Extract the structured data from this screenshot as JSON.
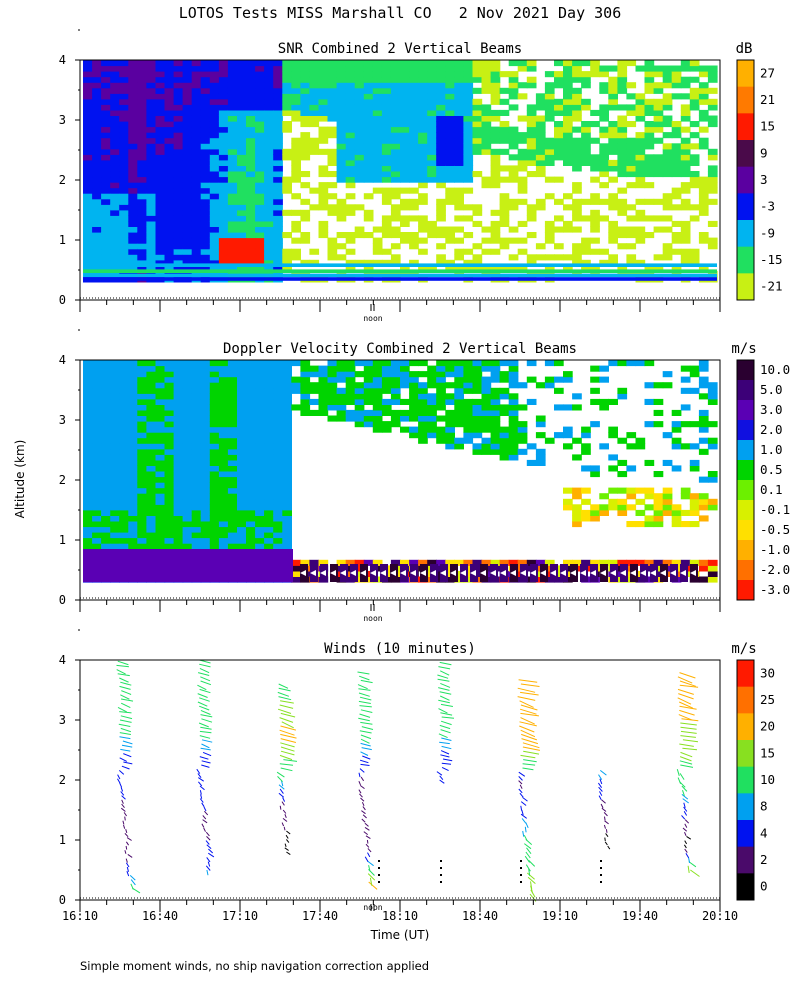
{
  "page": {
    "title": "LOTOS Tests MISS Marshall CO   2 Nov 2021 Day 306",
    "ylabel": "Altitude (km)",
    "xlabel": "Time (UT)",
    "footnote": "Simple moment winds, no ship navigation correction applied",
    "noon_label": "noon"
  },
  "chart_data": [
    {
      "type": "heatmap",
      "title": "SNR Combined 2 Vertical Beams",
      "ylim": [
        0,
        4
      ],
      "yticks": [
        "0",
        "1",
        "2",
        "3",
        "4"
      ],
      "x_range_utc": [
        "16:10",
        "20:10"
      ],
      "colorbar": {
        "unit": "dB",
        "labels": [
          "27",
          "21",
          "15",
          "9",
          "3",
          "-3",
          "-9",
          "-15",
          "-21"
        ],
        "colors": [
          "#ffb000",
          "#ff7a00",
          "#ff1a00",
          "#4a0a4a",
          "#5a00a0",
          "#0012f0",
          "#00b4f0",
          "#20e060",
          "#c8f014"
        ]
      },
      "description_regions": [
        {
          "region": "early period 16:10-17:40 low-mid levels",
          "value_range_db": [
            -9,
            9
          ]
        },
        {
          "region": "late period upper levels",
          "value_range_db": [
            -21,
            -9
          ]
        }
      ]
    },
    {
      "type": "heatmap",
      "title": "Doppler Velocity Combined 2 Vertical Beams",
      "ylim": [
        0,
        4
      ],
      "yticks": [
        "0",
        "1",
        "2",
        "3",
        "4"
      ],
      "x_range_utc": [
        "16:10",
        "20:10"
      ],
      "colorbar": {
        "unit": "m/s",
        "labels": [
          "10.0",
          "5.0",
          "3.0",
          "2.0",
          "1.0",
          "0.5",
          "0.1",
          "-0.1",
          "-0.5",
          "-1.0",
          "-2.0",
          "-3.0"
        ],
        "colors": [
          "#2a0030",
          "#3c0078",
          "#5a00b4",
          "#1010e0",
          "#00a0f0",
          "#00d400",
          "#6cf000",
          "#d8f000",
          "#ffe000",
          "#ffb000",
          "#ff7000",
          "#ff1a00"
        ]
      }
    },
    {
      "type": "scatter",
      "title": "Winds (10 minutes)",
      "ylim": [
        0,
        4
      ],
      "yticks": [
        "0",
        "1",
        "2",
        "3",
        "4"
      ],
      "xticks": [
        "16:10",
        "16:40",
        "17:10",
        "17:40",
        "18:10",
        "18:40",
        "19:10",
        "19:40",
        "20:10"
      ],
      "colorbar": {
        "unit": "m/s",
        "labels": [
          "30",
          "25",
          "20",
          "15",
          "10",
          "8",
          "4",
          "2",
          "0"
        ],
        "colors": [
          "#ff1a00",
          "#ff7000",
          "#ffb000",
          "#88e020",
          "#20e060",
          "#00a0f0",
          "#0012f0",
          "#4a0a6a",
          "#000000"
        ]
      },
      "profiles_utc": [
        "16:30",
        "17:00",
        "17:30",
        "18:00",
        "18:30",
        "19:00",
        "19:30",
        "20:00"
      ],
      "wind_speed_profiles": [
        {
          "time": "16:30",
          "alt_km": [
            4.0,
            3.0,
            2.2,
            1.5,
            0.8,
            0.2
          ],
          "speed_ms": [
            12,
            12,
            6,
            3,
            2,
            12
          ]
        },
        {
          "time": "17:00",
          "alt_km": [
            4.0,
            3.0,
            2.2,
            1.2,
            0.5
          ],
          "speed_ms": [
            12,
            12,
            6,
            3,
            8
          ]
        },
        {
          "time": "17:30",
          "alt_km": [
            3.6,
            2.8,
            1.6,
            0.8
          ],
          "speed_ms": [
            12,
            22,
            3,
            1
          ]
        },
        {
          "time": "18:00",
          "alt_km": [
            3.8,
            2.8,
            2.0,
            0.9,
            0.3
          ],
          "speed_ms": [
            12,
            12,
            3,
            2,
            20
          ]
        },
        {
          "time": "18:30",
          "alt_km": [
            4.0,
            3.0,
            2.0
          ],
          "speed_ms": [
            12,
            12,
            4
          ]
        },
        {
          "time": "19:00",
          "alt_km": [
            3.7,
            2.6,
            2.0,
            0.1
          ],
          "speed_ms": [
            24,
            24,
            3,
            18
          ]
        },
        {
          "time": "19:30",
          "alt_km": [
            2.2,
            1.7,
            0.9
          ],
          "speed_ms": [
            10,
            4,
            1
          ]
        },
        {
          "time": "20:00",
          "alt_km": [
            3.8,
            3.2,
            1.8,
            1.4,
            0.9,
            0.5
          ],
          "speed_ms": [
            24,
            22,
            10,
            4,
            1,
            18
          ]
        }
      ]
    }
  ]
}
